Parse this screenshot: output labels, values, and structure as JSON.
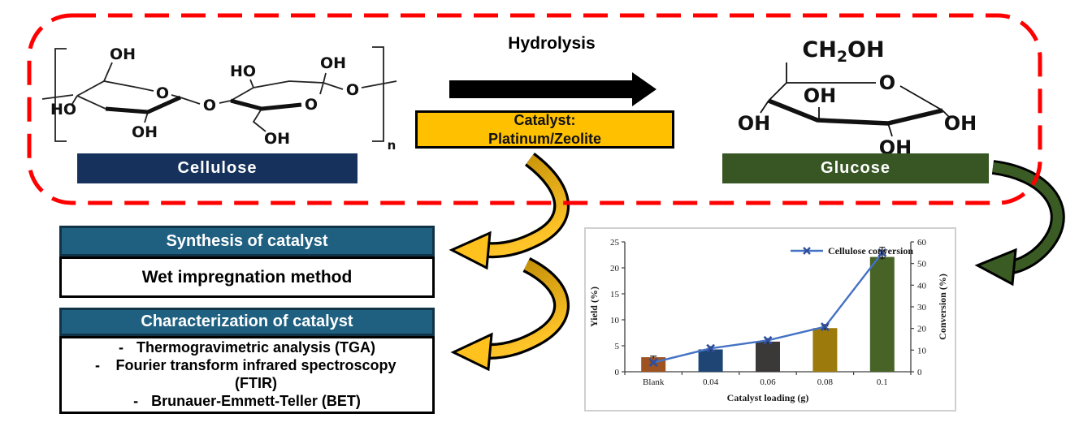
{
  "reaction_scheme": {
    "frame_color": "#FF0000",
    "hydrolysis_label": "Hydrolysis",
    "catalyst_box": {
      "line1": "Catalyst:",
      "line2": "Platinum/Zeolite",
      "bg_color": "#FFC000"
    },
    "cellulose_label": "Cellulose",
    "cellulose_label_bg": "#16325C",
    "glucose_label": "Glucose",
    "glucose_label_bg": "#375623",
    "process_arrow_color": "#E8A800",
    "glucose_arrow_color": "#3A5B23",
    "cellulose_structure": {
      "r1_top_oh": "OH",
      "r1_left_ho": "HO",
      "r1_bottom_oh": "OH",
      "r1_ring_o": "O",
      "glycosidic_o": "O",
      "r2_top_ho": "HO",
      "r2_topright_oh": "OH",
      "r2_bottom_oh": "OH",
      "r2_ring_o": "O",
      "chain_o": "O",
      "subscript_n": "n"
    },
    "glucose_structure": {
      "ch2oh": {
        "pre": "CH",
        "sub": "2",
        "post": "OH"
      },
      "ring_o": "O",
      "inner_oh": "OH",
      "left_oh": "OH",
      "bottom_oh": "OH",
      "right_oh": "OH"
    }
  },
  "method_boxes": {
    "synthesis_header": "Synthesis of catalyst",
    "synthesis_body": "Wet impregnation method",
    "characterization_header": "Characterization of catalyst",
    "bullet": "-",
    "characterization_items": [
      "Thermogravimetric analysis (TGA)",
      "Fourier transform infrared spectroscopy (FTIR)",
      "Brunauer-Emmett-Teller (BET)"
    ]
  },
  "chart_data": {
    "type": "bar-line-combo",
    "categories": [
      "Blank",
      "0.04",
      "0.06",
      "0.08",
      "0.1"
    ],
    "bar_series": {
      "name": "Yield",
      "axis": "left",
      "values": [
        2.8,
        4.3,
        5.8,
        8.4,
        22.1
      ],
      "colors": [
        "#9E5320",
        "#1F4575",
        "#3B3838",
        "#9C7A0B",
        "#486326"
      ],
      "error": [
        0.2,
        0.2,
        0.3,
        0.4,
        0.5
      ]
    },
    "line_series": {
      "name": "Cellulose conversion",
      "axis": "right",
      "values": [
        4.3,
        10.8,
        14.5,
        20.8,
        55.0
      ],
      "color": "#4472C4",
      "marker_color": "#2E4E9E",
      "marker": "x",
      "error": [
        0.5,
        0.8,
        0.8,
        1.0,
        2.5
      ]
    },
    "xlabel": "Catalyst loading (g)",
    "ylabel_left": "Yield (%)",
    "ylim_left": [
      0,
      25
    ],
    "ytick_step_left": 5,
    "ylabel_right": "Conversion (%)",
    "ylim_right": [
      0,
      60
    ],
    "ytick_step_right": 10,
    "legend": {
      "label": "Cellulose conversion",
      "position": "top-right"
    },
    "grid": false,
    "panel_border": "#d0d0d0"
  }
}
